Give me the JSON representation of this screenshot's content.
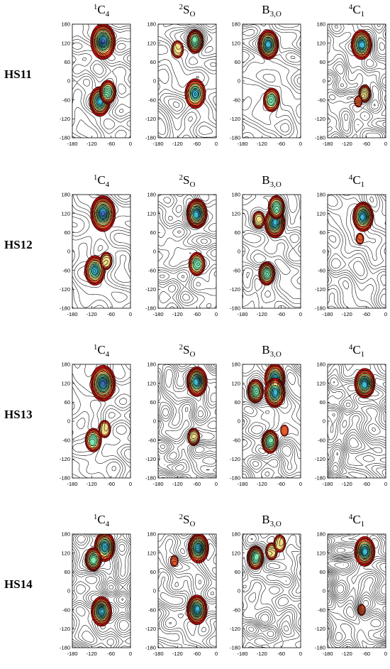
{
  "chart_data": {
    "type": "contour",
    "x_ticks": [
      -180,
      -120,
      -60,
      0
    ],
    "y_ticks": [
      180,
      120,
      60,
      0,
      -60,
      -120,
      -180
    ],
    "xlim": [
      -180,
      0
    ],
    "ylim": [
      -180,
      180
    ],
    "columns": [
      {
        "base": "C",
        "sup": "1",
        "sub": "4"
      },
      {
        "base": "S",
        "sup": "2",
        "sub": "O"
      },
      {
        "base": "B",
        "sup": "",
        "sub": "3,O"
      },
      {
        "base": "C",
        "sup": "4",
        "sub": "1"
      }
    ],
    "rows": [
      "HS11",
      "HS12",
      "HS13",
      "HS14"
    ],
    "colors": {
      "deep": "#4a5fd6",
      "mid": "#3fb9d8",
      "light": "#7fe8b0",
      "warm": "#f0e08a",
      "hot": "#e25a2c",
      "rim": "#b01010",
      "line": "#000000"
    },
    "panels": [
      [
        {
          "minima": [
            {
              "x": -85,
              "y": 125,
              "depth": 5
            },
            {
              "x": -95,
              "y": -65,
              "depth": 4
            },
            {
              "x": -70,
              "y": -35,
              "depth": 3
            }
          ]
        },
        {
          "minima": [
            {
              "x": -65,
              "y": 125,
              "depth": 3
            },
            {
              "x": -120,
              "y": 100,
              "depth": 2
            },
            {
              "x": -65,
              "y": -40,
              "depth": 4
            }
          ]
        },
        {
          "minima": [
            {
              "x": -100,
              "y": 115,
              "depth": 4
            },
            {
              "x": -90,
              "y": -60,
              "depth": 3
            }
          ]
        },
        {
          "minima": [
            {
              "x": -75,
              "y": 115,
              "depth": 4
            },
            {
              "x": -65,
              "y": -40,
              "depth": 2
            },
            {
              "x": -85,
              "y": -65,
              "depth": 1
            }
          ]
        }
      ],
      [
        {
          "minima": [
            {
              "x": -85,
              "y": 120,
              "depth": 5
            },
            {
              "x": -110,
              "y": -60,
              "depth": 4
            },
            {
              "x": -75,
              "y": -30,
              "depth": 2
            }
          ]
        },
        {
          "minima": [
            {
              "x": -60,
              "y": 120,
              "depth": 4
            },
            {
              "x": -60,
              "y": -40,
              "depth": 3
            }
          ]
        },
        {
          "minima": [
            {
              "x": -80,
              "y": 90,
              "depth": 4
            },
            {
              "x": -75,
              "y": 140,
              "depth": 3
            },
            {
              "x": -130,
              "y": 100,
              "depth": 2
            },
            {
              "x": -105,
              "y": -70,
              "depth": 3
            }
          ]
        },
        {
          "minima": [
            {
              "x": -70,
              "y": 110,
              "depth": 4
            },
            {
              "x": -80,
              "y": 40,
              "depth": 1
            }
          ]
        }
      ],
      [
        {
          "minima": [
            {
              "x": -85,
              "y": 120,
              "depth": 5
            },
            {
              "x": -115,
              "y": -60,
              "depth": 3
            },
            {
              "x": -80,
              "y": -25,
              "depth": 2
            }
          ]
        },
        {
          "minima": [
            {
              "x": -60,
              "y": 125,
              "depth": 4
            },
            {
              "x": -70,
              "y": -50,
              "depth": 2
            }
          ]
        },
        {
          "minima": [
            {
              "x": -80,
              "y": 135,
              "depth": 4
            },
            {
              "x": -80,
              "y": 90,
              "depth": 4
            },
            {
              "x": -140,
              "y": 95,
              "depth": 3
            },
            {
              "x": -95,
              "y": -65,
              "depth": 3
            },
            {
              "x": -50,
              "y": -30,
              "depth": 1
            }
          ]
        },
        {
          "minima": [
            {
              "x": -65,
              "y": 120,
              "depth": 4
            }
          ]
        }
      ],
      [
        {
          "minima": [
            {
              "x": -80,
              "y": 140,
              "depth": 4
            },
            {
              "x": -115,
              "y": 100,
              "depth": 3
            },
            {
              "x": -90,
              "y": -65,
              "depth": 4
            }
          ]
        },
        {
          "minima": [
            {
              "x": -55,
              "y": 135,
              "depth": 4
            },
            {
              "x": -130,
              "y": 95,
              "depth": 1
            },
            {
              "x": -60,
              "y": -60,
              "depth": 4
            }
          ]
        },
        {
          "minima": [
            {
              "x": -140,
              "y": 105,
              "depth": 3
            },
            {
              "x": -90,
              "y": 125,
              "depth": 2
            },
            {
              "x": -65,
              "y": 150,
              "depth": 2
            }
          ]
        },
        {
          "minima": [
            {
              "x": -65,
              "y": 125,
              "depth": 4
            },
            {
              "x": -75,
              "y": -60,
              "depth": 1
            }
          ]
        }
      ]
    ]
  }
}
